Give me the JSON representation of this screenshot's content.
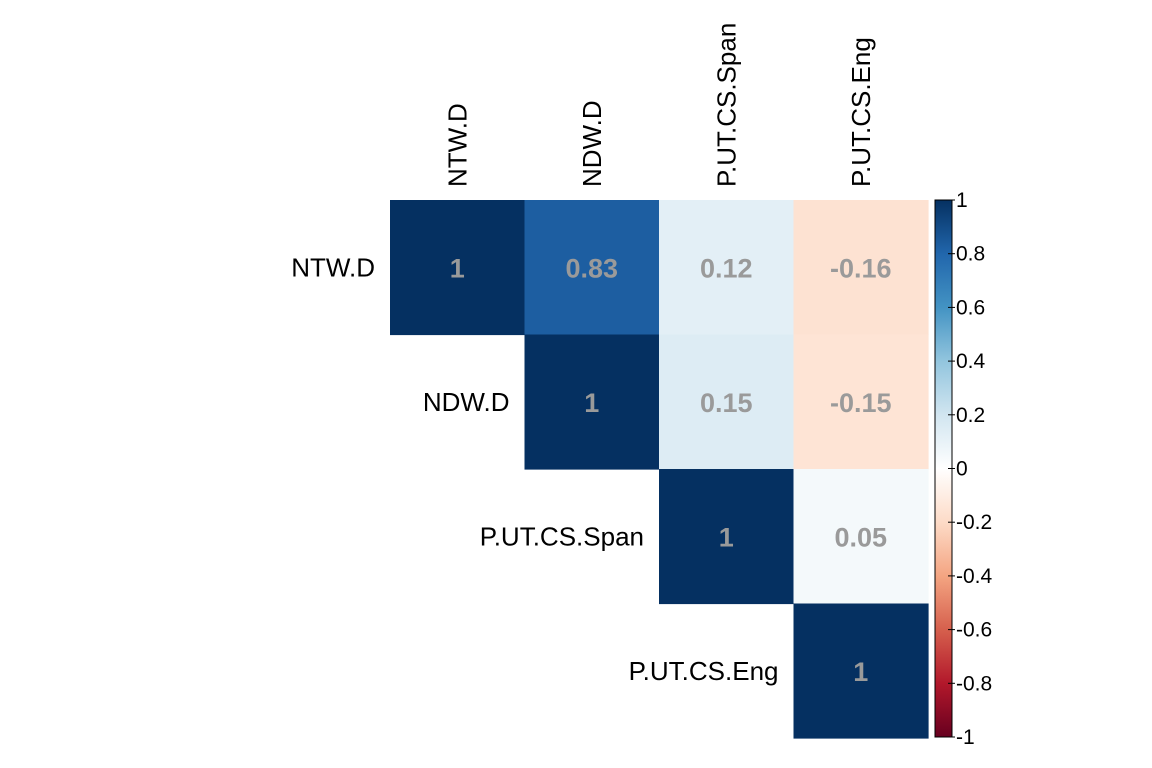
{
  "chart_data": {
    "type": "heatmap",
    "title": "",
    "layout": "upper-triangle correlation matrix",
    "variables": [
      "NTW.D",
      "NDW.D",
      "P.UT.CS.Span",
      "P.UT.CS.Eng"
    ],
    "cells": [
      {
        "row": "NTW.D",
        "col": "NTW.D",
        "value": 1,
        "label": "1"
      },
      {
        "row": "NTW.D",
        "col": "NDW.D",
        "value": 0.83,
        "label": "0.83"
      },
      {
        "row": "NTW.D",
        "col": "P.UT.CS.Span",
        "value": 0.12,
        "label": "0.12"
      },
      {
        "row": "NTW.D",
        "col": "P.UT.CS.Eng",
        "value": -0.16,
        "label": "-0.16"
      },
      {
        "row": "NDW.D",
        "col": "NDW.D",
        "value": 1,
        "label": "1"
      },
      {
        "row": "NDW.D",
        "col": "P.UT.CS.Span",
        "value": 0.15,
        "label": "0.15"
      },
      {
        "row": "NDW.D",
        "col": "P.UT.CS.Eng",
        "value": -0.15,
        "label": "-0.15"
      },
      {
        "row": "P.UT.CS.Span",
        "col": "P.UT.CS.Span",
        "value": 1,
        "label": "1"
      },
      {
        "row": "P.UT.CS.Span",
        "col": "P.UT.CS.Eng",
        "value": 0.05,
        "label": "0.05"
      },
      {
        "row": "P.UT.CS.Eng",
        "col": "P.UT.CS.Eng",
        "value": 1,
        "label": "1"
      }
    ],
    "colorbar": {
      "range": [
        -1,
        1
      ],
      "ticks": [
        "1",
        "0.8",
        "0.6",
        "0.4",
        "0.2",
        "0",
        "-0.2",
        "-0.4",
        "-0.6",
        "-0.8",
        "-1"
      ],
      "tick_values": [
        1,
        0.8,
        0.6,
        0.4,
        0.2,
        0,
        -0.2,
        -0.4,
        -0.6,
        -0.8,
        -1
      ],
      "palette": [
        "#67001F",
        "#B2182B",
        "#D6604D",
        "#F4A582",
        "#FDDBC7",
        "#FFFFFF",
        "#D1E5F0",
        "#92C5DE",
        "#4393C3",
        "#2166AC",
        "#053061"
      ]
    },
    "value_label_color": "#9a9a9a"
  }
}
